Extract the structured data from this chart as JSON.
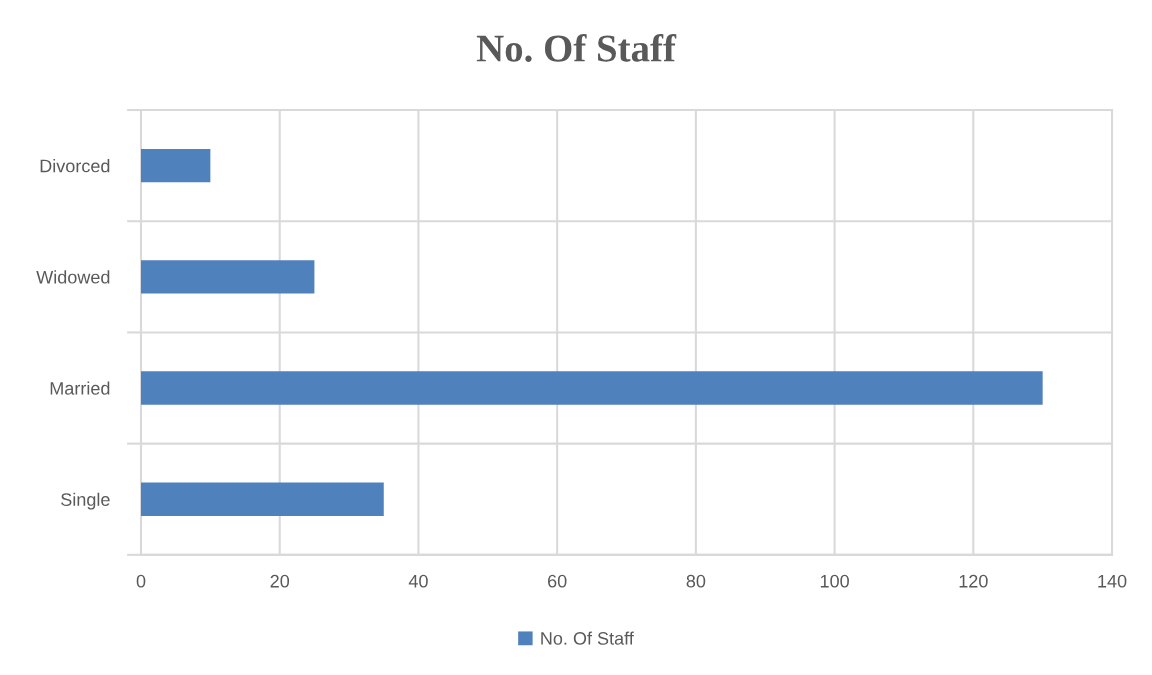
{
  "chart_data": {
    "type": "bar",
    "orientation": "horizontal",
    "title": "No. Of Staff",
    "categories": [
      "Divorced",
      "Widowed",
      "Married",
      "Single"
    ],
    "series": [
      {
        "name": "No. Of Staff",
        "color": "#4f81bd",
        "values": [
          10,
          25,
          130,
          35
        ]
      }
    ],
    "xlim": [
      0,
      140
    ],
    "xticks": [
      0,
      20,
      40,
      60,
      80,
      100,
      120,
      140
    ],
    "grid": true,
    "legend": "bottom"
  }
}
